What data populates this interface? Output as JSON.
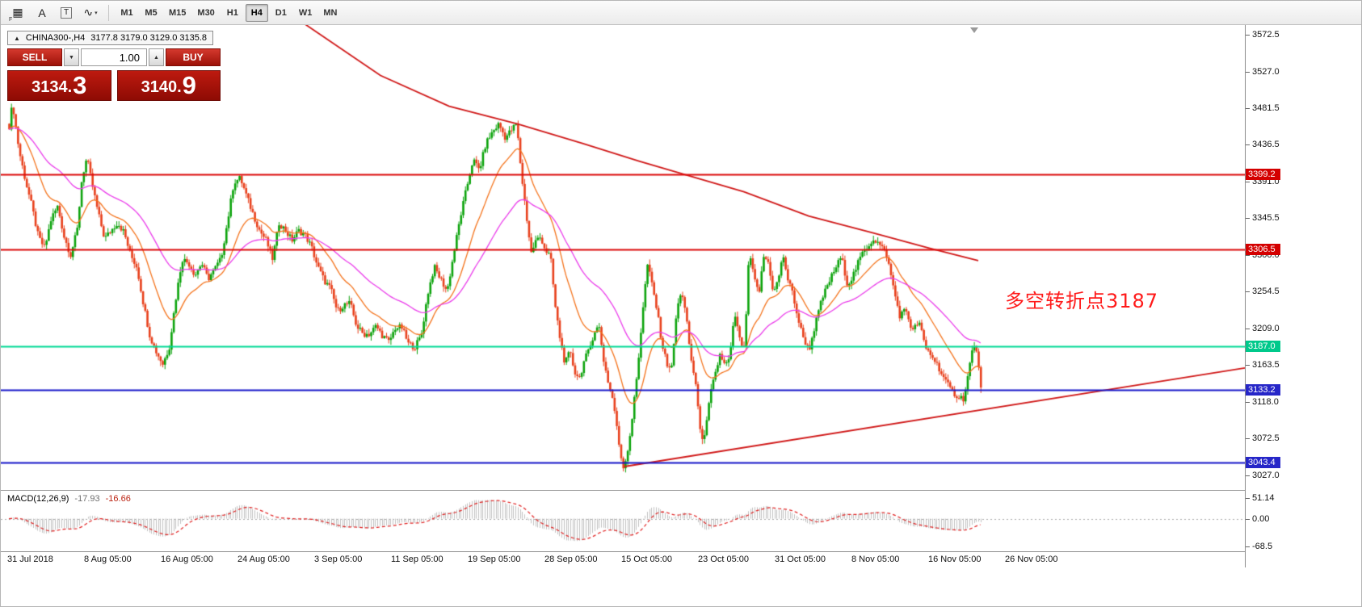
{
  "toolbar": {
    "tools": [
      {
        "name": "grid-dots-tool-icon",
        "glyph": "▦",
        "sub": "F"
      },
      {
        "name": "letter-a-tool-icon",
        "glyph": "A"
      },
      {
        "name": "text-box-tool-icon",
        "glyph": "T",
        "boxed": true
      },
      {
        "name": "polyline-tool-icon",
        "glyph": "∿",
        "dropdown": "▾"
      }
    ],
    "timeframes": [
      "M1",
      "M5",
      "M15",
      "M30",
      "H1",
      "H4",
      "D1",
      "W1",
      "MN"
    ],
    "active_timeframe": "H4"
  },
  "chart": {
    "title": {
      "marker": "▲",
      "symbol": "CHINA300-,H4",
      "ohlc": "3177.8 3179.0 3129.0 3135.8"
    },
    "trade_panel": {
      "sell_label": "SELL",
      "buy_label": "BUY",
      "volume": "1.00",
      "decrease_glyph": "▼",
      "increase_glyph": "▲",
      "sell_price": {
        "main": "3134.",
        "big": "3"
      },
      "buy_price": {
        "main": "3140.",
        "big": "9"
      }
    },
    "annotation": {
      "text": "多空转折点3187",
      "color": "#ff1a1a"
    },
    "price_axis": {
      "ticks": [
        "3572.5",
        "3527.0",
        "3481.5",
        "3436.5",
        "3391.0",
        "3345.5",
        "3300.0",
        "3254.5",
        "3209.0",
        "3163.5",
        "3118.0",
        "3072.5",
        "3027.0"
      ]
    },
    "levels": [
      {
        "label": "3399.2",
        "price": 3399.2,
        "line_color": "#dc0a0a",
        "badge_color": "#d40000"
      },
      {
        "label": "3306.5",
        "price": 3306.5,
        "line_color": "#dc0a0a",
        "badge_color": "#d40000"
      },
      {
        "label": "3187.0",
        "price": 3187.0,
        "line_color": "#00d995",
        "badge_color": "#00c98b"
      },
      {
        "label": "3133.2",
        "price": 3133.2,
        "line_color": "#1616c8",
        "badge_color": "#2626c8"
      },
      {
        "label": "3043.4",
        "price": 3043.4,
        "line_color": "#1616c8",
        "badge_color": "#2626c8"
      }
    ]
  },
  "macd": {
    "name": "MACD(12,26,9)",
    "value_main": "-17.93",
    "value_signal": "-16.66",
    "axis_ticks": [
      "51.14",
      "0.00",
      "-68.5"
    ]
  },
  "time_axis": {
    "labels": [
      "31 Jul 2018",
      "8 Aug 05:00",
      "16 Aug 05:00",
      "24 Aug 05:00",
      "3 Sep 05:00",
      "11 Sep 05:00",
      "19 Sep 05:00",
      "28 Sep 05:00",
      "15 Oct 05:00",
      "23 Oct 05:00",
      "31 Oct 05:00",
      "8 Nov 05:00",
      "16 Nov 05:00",
      "26 Nov 05:00"
    ]
  },
  "chart_data": {
    "type": "candlestick",
    "symbol": "CHINA300-",
    "timeframe": "H4",
    "title": "CHINA300-,H4",
    "current_ohlc": {
      "open": 3177.8,
      "high": 3179.0,
      "low": 3129.0,
      "close": 3135.8
    },
    "bid": 3134.3,
    "ask": 3140.9,
    "y_axis": {
      "min": 3027.0,
      "max": 3572.5,
      "tick_step": 45.5
    },
    "horizontal_levels": [
      3399.2,
      3306.5,
      3187.0,
      3133.2,
      3043.4
    ],
    "annotation_level": 3187,
    "colors": {
      "up": "#0ba30b",
      "down": "#e8401c",
      "ma_fast": "#f4731c",
      "ma_slow": "#ea3cea",
      "trend": "#d01818",
      "macd_hist": "#c0c0c0",
      "macd_signal": "#e02020"
    },
    "ma_fast_period": 21,
    "ma_slow_period": 56,
    "price_path_anchors": [
      [
        8,
        3445
      ],
      [
        14,
        3488
      ],
      [
        22,
        3430
      ],
      [
        30,
        3392
      ],
      [
        38,
        3360
      ],
      [
        46,
        3322
      ],
      [
        54,
        3308
      ],
      [
        62,
        3345
      ],
      [
        70,
        3360
      ],
      [
        78,
        3322
      ],
      [
        86,
        3300
      ],
      [
        94,
        3330
      ],
      [
        100,
        3395
      ],
      [
        106,
        3420
      ],
      [
        112,
        3390
      ],
      [
        120,
        3352
      ],
      [
        128,
        3320
      ],
      [
        136,
        3330
      ],
      [
        144,
        3340
      ],
      [
        152,
        3328
      ],
      [
        160,
        3300
      ],
      [
        168,
        3285
      ],
      [
        176,
        3240
      ],
      [
        184,
        3200
      ],
      [
        192,
        3180
      ],
      [
        200,
        3165
      ],
      [
        208,
        3185
      ],
      [
        216,
        3245
      ],
      [
        224,
        3295
      ],
      [
        232,
        3290
      ],
      [
        240,
        3275
      ],
      [
        248,
        3290
      ],
      [
        256,
        3270
      ],
      [
        264,
        3282
      ],
      [
        272,
        3295
      ],
      [
        280,
        3340
      ],
      [
        288,
        3390
      ],
      [
        296,
        3395
      ],
      [
        304,
        3372
      ],
      [
        312,
        3350
      ],
      [
        320,
        3330
      ],
      [
        328,
        3318
      ],
      [
        336,
        3295
      ],
      [
        344,
        3340
      ],
      [
        352,
        3330
      ],
      [
        360,
        3318
      ],
      [
        368,
        3330
      ],
      [
        376,
        3325
      ],
      [
        384,
        3310
      ],
      [
        392,
        3285
      ],
      [
        400,
        3268
      ],
      [
        408,
        3258
      ],
      [
        416,
        3230
      ],
      [
        424,
        3238
      ],
      [
        432,
        3240
      ],
      [
        440,
        3212
      ],
      [
        448,
        3202
      ],
      [
        456,
        3202
      ],
      [
        464,
        3212
      ],
      [
        472,
        3200
      ],
      [
        480,
        3192
      ],
      [
        488,
        3210
      ],
      [
        496,
        3210
      ],
      [
        504,
        3190
      ],
      [
        512,
        3186
      ],
      [
        520,
        3200
      ],
      [
        528,
        3252
      ],
      [
        536,
        3285
      ],
      [
        544,
        3270
      ],
      [
        552,
        3255
      ],
      [
        560,
        3300
      ],
      [
        568,
        3345
      ],
      [
        576,
        3382
      ],
      [
        584,
        3418
      ],
      [
        592,
        3405
      ],
      [
        600,
        3438
      ],
      [
        608,
        3452
      ],
      [
        616,
        3462
      ],
      [
        624,
        3445
      ],
      [
        632,
        3455
      ],
      [
        638,
        3462
      ],
      [
        644,
        3400
      ],
      [
        650,
        3350
      ],
      [
        656,
        3302
      ],
      [
        662,
        3318
      ],
      [
        668,
        3322
      ],
      [
        674,
        3305
      ],
      [
        680,
        3298
      ],
      [
        686,
        3235
      ],
      [
        692,
        3195
      ],
      [
        698,
        3165
      ],
      [
        704,
        3180
      ],
      [
        710,
        3155
      ],
      [
        716,
        3148
      ],
      [
        722,
        3170
      ],
      [
        728,
        3182
      ],
      [
        734,
        3205
      ],
      [
        740,
        3212
      ],
      [
        746,
        3168
      ],
      [
        752,
        3140
      ],
      [
        758,
        3118
      ],
      [
        764,
        3070
      ],
      [
        770,
        3036
      ],
      [
        776,
        3060
      ],
      [
        782,
        3105
      ],
      [
        788,
        3160
      ],
      [
        794,
        3230
      ],
      [
        800,
        3288
      ],
      [
        806,
        3262
      ],
      [
        812,
        3230
      ],
      [
        818,
        3190
      ],
      [
        824,
        3165
      ],
      [
        830,
        3160
      ],
      [
        836,
        3228
      ],
      [
        842,
        3258
      ],
      [
        848,
        3222
      ],
      [
        854,
        3170
      ],
      [
        860,
        3140
      ],
      [
        866,
        3072
      ],
      [
        872,
        3082
      ],
      [
        878,
        3128
      ],
      [
        884,
        3152
      ],
      [
        890,
        3178
      ],
      [
        896,
        3162
      ],
      [
        902,
        3172
      ],
      [
        908,
        3228
      ],
      [
        914,
        3195
      ],
      [
        920,
        3182
      ],
      [
        926,
        3305
      ],
      [
        932,
        3270
      ],
      [
        938,
        3252
      ],
      [
        944,
        3298
      ],
      [
        950,
        3290
      ],
      [
        956,
        3252
      ],
      [
        962,
        3270
      ],
      [
        968,
        3300
      ],
      [
        974,
        3268
      ],
      [
        980,
        3252
      ],
      [
        986,
        3222
      ],
      [
        992,
        3200
      ],
      [
        1000,
        3182
      ],
      [
        1008,
        3215
      ],
      [
        1016,
        3245
      ],
      [
        1024,
        3265
      ],
      [
        1032,
        3282
      ],
      [
        1040,
        3298
      ],
      [
        1048,
        3262
      ],
      [
        1056,
        3278
      ],
      [
        1064,
        3298
      ],
      [
        1072,
        3310
      ],
      [
        1080,
        3320
      ],
      [
        1088,
        3312
      ],
      [
        1096,
        3300
      ],
      [
        1104,
        3262
      ],
      [
        1112,
        3225
      ],
      [
        1120,
        3232
      ],
      [
        1128,
        3205
      ],
      [
        1136,
        3218
      ],
      [
        1144,
        3185
      ],
      [
        1152,
        3175
      ],
      [
        1160,
        3162
      ],
      [
        1168,
        3145
      ],
      [
        1176,
        3132
      ],
      [
        1184,
        3125
      ],
      [
        1192,
        3122
      ],
      [
        1198,
        3158
      ],
      [
        1204,
        3192
      ],
      [
        1210,
        3165
      ],
      [
        1214,
        3136
      ]
    ],
    "trendline_down": [
      [
        370,
        3590
      ],
      [
        470,
        3522
      ],
      [
        555,
        3484
      ],
      [
        640,
        3462
      ],
      [
        720,
        3438
      ],
      [
        790,
        3416
      ],
      [
        848,
        3399
      ],
      [
        920,
        3378
      ],
      [
        1000,
        3348
      ],
      [
        1080,
        3327
      ],
      [
        1150,
        3308
      ],
      [
        1210,
        3293
      ]
    ],
    "trendline_up": [
      [
        772,
        3038
      ],
      [
        1540,
        3160
      ]
    ],
    "macd": {
      "params": [
        12,
        26,
        9
      ],
      "last_main": -17.93,
      "last_signal": -16.66,
      "axis_max": 51.14,
      "axis_min": -68.5
    }
  }
}
